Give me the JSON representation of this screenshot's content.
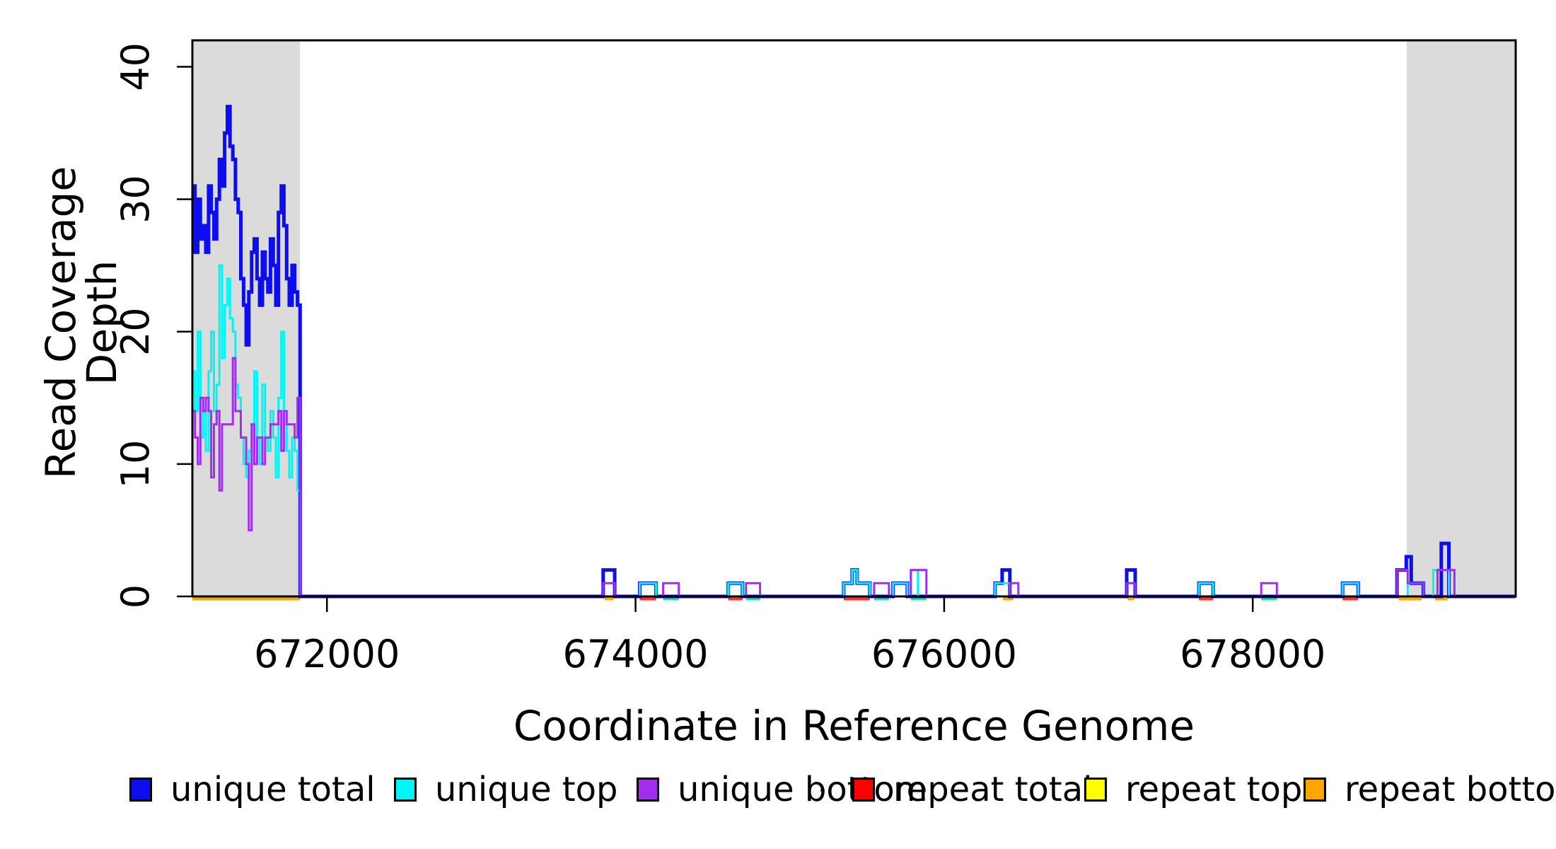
{
  "chart_data": {
    "type": "line",
    "title": "",
    "xlabel": "Coordinate in Reference Genome",
    "ylabel": "Read Coverage Depth",
    "xlim": [
      671128,
      679704
    ],
    "ylim": [
      0,
      42
    ],
    "grid": false,
    "legend_position": "bottom",
    "xticks": [
      {
        "value": 672000,
        "label": "672000"
      },
      {
        "value": 674000,
        "label": "674000"
      },
      {
        "value": 676000,
        "label": "676000"
      },
      {
        "value": 678000,
        "label": "678000"
      }
    ],
    "yticks": [
      {
        "value": 0,
        "label": "0"
      },
      {
        "value": 10,
        "label": "10"
      },
      {
        "value": 20,
        "label": "20"
      },
      {
        "value": 30,
        "label": "30"
      },
      {
        "value": 40,
        "label": "40"
      }
    ],
    "shaded_regions": [
      {
        "x0": 671128,
        "x1": 671826,
        "color": "#DBDBDB"
      },
      {
        "x0": 678998,
        "x1": 679704,
        "color": "#DBDBDB"
      }
    ],
    "series": [
      {
        "name": "repeat total",
        "color": "#FF0000",
        "line_width": 3,
        "steps": [
          [
            671128,
            0
          ]
        ],
        "xend": 679704
      },
      {
        "name": "repeat top",
        "color": "#FFFF00",
        "line_width": 3,
        "steps": [
          [
            671128,
            0
          ]
        ],
        "xend": 679704
      },
      {
        "name": "repeat bottom",
        "color": "#FFA500",
        "line_width": 3,
        "steps": [
          [
            671128,
            0
          ]
        ],
        "xend": 679704
      },
      {
        "name": "unique total",
        "color": "#0D0DF0",
        "line_width": 5,
        "steps": [
          [
            671128,
            31
          ],
          [
            671145,
            26
          ],
          [
            671163,
            30
          ],
          [
            671180,
            27
          ],
          [
            671198,
            28
          ],
          [
            671215,
            26
          ],
          [
            671233,
            31
          ],
          [
            671250,
            29
          ],
          [
            671268,
            27
          ],
          [
            671285,
            30
          ],
          [
            671303,
            33
          ],
          [
            671320,
            31
          ],
          [
            671337,
            35
          ],
          [
            671355,
            37
          ],
          [
            671372,
            34
          ],
          [
            671390,
            33
          ],
          [
            671407,
            30
          ],
          [
            671425,
            29
          ],
          [
            671442,
            24
          ],
          [
            671460,
            22
          ],
          [
            671477,
            19
          ],
          [
            671494,
            23
          ],
          [
            671512,
            26
          ],
          [
            671529,
            27
          ],
          [
            671547,
            24
          ],
          [
            671564,
            22
          ],
          [
            671582,
            26
          ],
          [
            671599,
            24
          ],
          [
            671617,
            23
          ],
          [
            671634,
            27
          ],
          [
            671652,
            25
          ],
          [
            671669,
            22
          ],
          [
            671686,
            29
          ],
          [
            671704,
            31
          ],
          [
            671721,
            28
          ],
          [
            671739,
            24
          ],
          [
            671756,
            22
          ],
          [
            671774,
            25
          ],
          [
            671791,
            23
          ],
          [
            671809,
            22
          ],
          [
            671826,
            0
          ],
          [
            673790,
            2
          ],
          [
            673865,
            0
          ],
          [
            674027,
            1
          ],
          [
            674133,
            0
          ],
          [
            674601,
            1
          ],
          [
            674693,
            0
          ],
          [
            675349,
            1
          ],
          [
            675404,
            2
          ],
          [
            675436,
            1
          ],
          [
            675518,
            0
          ],
          [
            675669,
            1
          ],
          [
            675761,
            0
          ],
          [
            676330,
            1
          ],
          [
            676376,
            2
          ],
          [
            676426,
            0
          ],
          [
            677183,
            2
          ],
          [
            677238,
            0
          ],
          [
            677651,
            1
          ],
          [
            677743,
            0
          ],
          [
            678582,
            1
          ],
          [
            678683,
            0
          ],
          [
            678935,
            2
          ],
          [
            678995,
            3
          ],
          [
            679027,
            1
          ],
          [
            679105,
            0
          ],
          [
            679222,
            4
          ],
          [
            679271,
            0
          ]
        ],
        "xend": 679704
      },
      {
        "name": "unique top",
        "color": "#00F6F6",
        "line_width": 3,
        "steps": [
          [
            671128,
            17
          ],
          [
            671145,
            14
          ],
          [
            671163,
            20
          ],
          [
            671180,
            12
          ],
          [
            671198,
            14
          ],
          [
            671215,
            11
          ],
          [
            671233,
            17
          ],
          [
            671250,
            20
          ],
          [
            671268,
            14
          ],
          [
            671285,
            16
          ],
          [
            671303,
            25
          ],
          [
            671320,
            18
          ],
          [
            671337,
            22
          ],
          [
            671355,
            24
          ],
          [
            671372,
            21
          ],
          [
            671390,
            20
          ],
          [
            671407,
            16
          ],
          [
            671425,
            15
          ],
          [
            671442,
            12
          ],
          [
            671460,
            10
          ],
          [
            671477,
            9
          ],
          [
            671494,
            11
          ],
          [
            671512,
            13
          ],
          [
            671529,
            17
          ],
          [
            671547,
            12
          ],
          [
            671564,
            10
          ],
          [
            671582,
            16
          ],
          [
            671599,
            12
          ],
          [
            671617,
            11
          ],
          [
            671634,
            14
          ],
          [
            671652,
            12
          ],
          [
            671669,
            9
          ],
          [
            671686,
            15
          ],
          [
            671704,
            20
          ],
          [
            671721,
            14
          ],
          [
            671739,
            11
          ],
          [
            671756,
            9
          ],
          [
            671774,
            12
          ],
          [
            671791,
            11
          ],
          [
            671809,
            8
          ],
          [
            671826,
            0
          ],
          [
            674027,
            1
          ],
          [
            674133,
            0
          ],
          [
            674601,
            1
          ],
          [
            674693,
            0
          ],
          [
            675349,
            1
          ],
          [
            675404,
            2
          ],
          [
            675436,
            1
          ],
          [
            675518,
            0
          ],
          [
            675669,
            1
          ],
          [
            675761,
            0
          ],
          [
            675784,
            2
          ],
          [
            675830,
            0
          ],
          [
            676330,
            1
          ],
          [
            676426,
            0
          ],
          [
            677651,
            1
          ],
          [
            677743,
            0
          ],
          [
            678582,
            1
          ],
          [
            678683,
            0
          ],
          [
            679004,
            1
          ],
          [
            679105,
            0
          ],
          [
            679170,
            2
          ],
          [
            679271,
            0
          ]
        ],
        "xend": 679704
      },
      {
        "name": "unique bottom",
        "color": "#A22DF0",
        "line_width": 3,
        "steps": [
          [
            671128,
            14
          ],
          [
            671145,
            12
          ],
          [
            671163,
            10
          ],
          [
            671180,
            15
          ],
          [
            671198,
            14
          ],
          [
            671215,
            15
          ],
          [
            671233,
            14
          ],
          [
            671250,
            9
          ],
          [
            671268,
            13
          ],
          [
            671285,
            14
          ],
          [
            671303,
            8
          ],
          [
            671320,
            13
          ],
          [
            671337,
            13
          ],
          [
            671355,
            13
          ],
          [
            671372,
            13
          ],
          [
            671390,
            18
          ],
          [
            671407,
            14
          ],
          [
            671425,
            14
          ],
          [
            671442,
            12
          ],
          [
            671460,
            12
          ],
          [
            671477,
            10
          ],
          [
            671494,
            5
          ],
          [
            671512,
            13
          ],
          [
            671529,
            10
          ],
          [
            671547,
            12
          ],
          [
            671564,
            12
          ],
          [
            671582,
            10
          ],
          [
            671599,
            12
          ],
          [
            671617,
            12
          ],
          [
            671634,
            13
          ],
          [
            671652,
            13
          ],
          [
            671669,
            13
          ],
          [
            671686,
            14
          ],
          [
            671704,
            11
          ],
          [
            671721,
            14
          ],
          [
            671739,
            13
          ],
          [
            671756,
            13
          ],
          [
            671774,
            13
          ],
          [
            671791,
            12
          ],
          [
            671809,
            15
          ],
          [
            671826,
            0
          ],
          [
            673790,
            1
          ],
          [
            673865,
            0
          ],
          [
            674179,
            1
          ],
          [
            674280,
            0
          ],
          [
            674716,
            1
          ],
          [
            674807,
            0
          ],
          [
            675546,
            1
          ],
          [
            675642,
            0
          ],
          [
            675784,
            2
          ],
          [
            675885,
            0
          ],
          [
            676426,
            1
          ],
          [
            676481,
            0
          ],
          [
            677183,
            1
          ],
          [
            677238,
            0
          ],
          [
            678055,
            1
          ],
          [
            678156,
            0
          ],
          [
            678935,
            2
          ],
          [
            679004,
            1
          ],
          [
            679105,
            0
          ],
          [
            679197,
            2
          ],
          [
            679307,
            0
          ]
        ],
        "xend": 679704
      }
    ],
    "base_marks": [
      {
        "color": "#FFA500",
        "x0": 671128,
        "x1": 671826
      },
      {
        "color": "#FFA500",
        "x0": 673800,
        "x1": 673858
      },
      {
        "color": "#FF3030",
        "x0": 674027,
        "x1": 674133
      },
      {
        "color": "#2EDE98",
        "x0": 674179,
        "x1": 674280
      },
      {
        "color": "#FF3030",
        "x0": 674601,
        "x1": 674693
      },
      {
        "color": "#2EDE98",
        "x0": 674716,
        "x1": 674807
      },
      {
        "color": "#FF3030",
        "x0": 675349,
        "x1": 675518
      },
      {
        "color": "#2EDE98",
        "x0": 675546,
        "x1": 675642
      },
      {
        "color": "#2EDE98",
        "x0": 675784,
        "x1": 675885
      },
      {
        "color": "#FFA500",
        "x0": 676380,
        "x1": 676448
      },
      {
        "color": "#FFA500",
        "x0": 677190,
        "x1": 677232
      },
      {
        "color": "#FF3030",
        "x0": 677651,
        "x1": 677743
      },
      {
        "color": "#2EDE98",
        "x0": 678055,
        "x1": 678156
      },
      {
        "color": "#FF3030",
        "x0": 678582,
        "x1": 678683
      },
      {
        "color": "#FFA500",
        "x0": 678945,
        "x1": 679095
      },
      {
        "color": "#FFA500",
        "x0": 679180,
        "x1": 679262
      }
    ]
  },
  "legend": {
    "dot": "",
    "items": [
      {
        "label": "unique total",
        "color": "#0D0DF0",
        "slug": "unique-total"
      },
      {
        "label": "unique top",
        "color": "#00F6F6",
        "slug": "unique-top"
      },
      {
        "label": "unique bottom",
        "color": "#A22DF0",
        "slug": "unique-bottom"
      },
      {
        "label": "repeat total",
        "color": "#FF0000",
        "slug": "repeat-total"
      },
      {
        "label": "repeat top",
        "color": "#FFFF00",
        "slug": "repeat-top"
      },
      {
        "label": "repeat bottom",
        "color": "#FFA500",
        "slug": "repeat-bottom"
      }
    ]
  }
}
